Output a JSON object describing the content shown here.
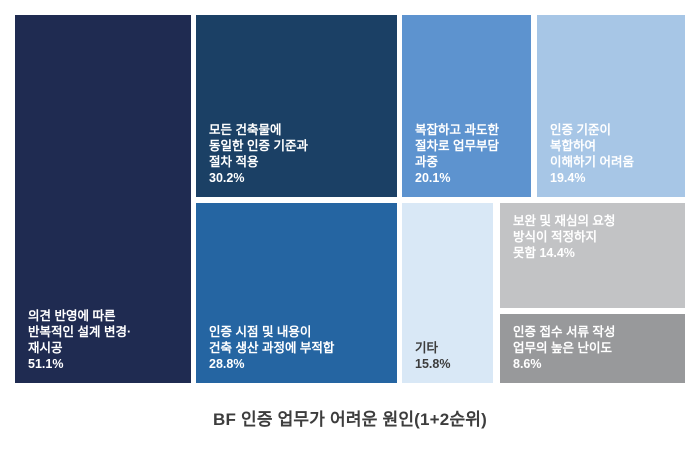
{
  "caption": "BF 인증 업무가 어려운 원인(1+2순위)",
  "chart_data": {
    "type": "treemap",
    "title": "BF 인증 업무가 어려운 원인(1+2순위)",
    "unit": "%",
    "items": [
      {
        "label": "의견 반영에 따른 반복적인 설계 변경·재시공",
        "value": 51.1,
        "lines": [
          "의견 반영에 따른",
          "반복적인 설계 변경·",
          "재시공",
          "51.1%"
        ],
        "color": "#1f2b51",
        "text_color": "#ffffff"
      },
      {
        "label": "모든 건축물에 동일한 인증 기준과 절차 적용",
        "value": 30.2,
        "lines": [
          "모든 건축물에",
          "동일한 인증 기준과",
          "절차 적용",
          "30.2%"
        ],
        "color": "#1b4065",
        "text_color": "#ffffff"
      },
      {
        "label": "인증 시점 및 내용이 건축 생산 과정에 부적합",
        "value": 28.8,
        "lines": [
          "인증 시점 및 내용이",
          "건축 생산 과정에 부적합",
          "28.8%"
        ],
        "color": "#2565a2",
        "text_color": "#ffffff"
      },
      {
        "label": "복잡하고 과도한 절차로 업무부담 과중",
        "value": 20.1,
        "lines": [
          "복잡하고 과도한",
          "절차로 업무부담",
          "과중",
          "20.1%"
        ],
        "color": "#5d93cf",
        "text_color": "#ffffff"
      },
      {
        "label": "인증 기준이 복합하여 이해하기 어려움",
        "value": 19.4,
        "lines": [
          "인증 기준이",
          "복합하여",
          "이해하기 어려움",
          "19.4%"
        ],
        "color": "#a7c6e6",
        "text_color": "#ffffff"
      },
      {
        "label": "기타",
        "value": 15.8,
        "lines": [
          "기타",
          "15.8%"
        ],
        "color": "#d9e8f6",
        "text_color": "#3c3c3c"
      },
      {
        "label": "보완 및 재심의 요청 방식이 적정하지 못함",
        "value": 14.4,
        "lines": [
          "보완 및 재심의 요청",
          "방식이 적정하지",
          "못함 14.4%"
        ],
        "color": "#c2c3c5",
        "text_color": "#ffffff"
      },
      {
        "label": "인증 접수 서류 작성 업무의 높은 난이도",
        "value": 8.6,
        "lines": [
          "인증 접수 서류 작성",
          "업무의 높은 난이도",
          "8.6%"
        ],
        "color": "#98999b",
        "text_color": "#ffffff"
      }
    ]
  }
}
